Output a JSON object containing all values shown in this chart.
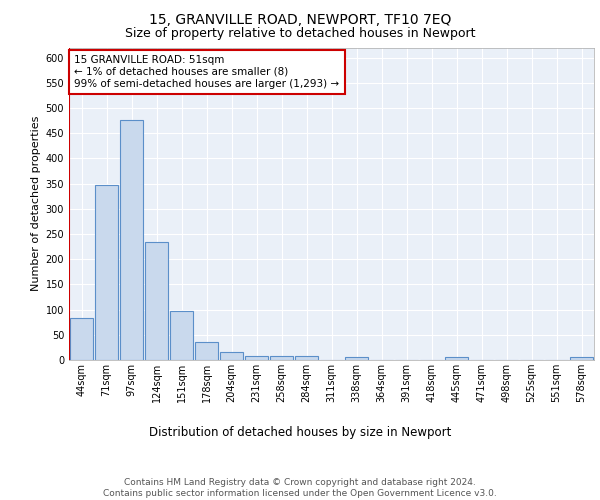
{
  "title1": "15, GRANVILLE ROAD, NEWPORT, TF10 7EQ",
  "title2": "Size of property relative to detached houses in Newport",
  "xlabel": "Distribution of detached houses by size in Newport",
  "ylabel": "Number of detached properties",
  "categories": [
    "44sqm",
    "71sqm",
    "97sqm",
    "124sqm",
    "151sqm",
    "178sqm",
    "204sqm",
    "231sqm",
    "258sqm",
    "284sqm",
    "311sqm",
    "338sqm",
    "364sqm",
    "391sqm",
    "418sqm",
    "445sqm",
    "471sqm",
    "498sqm",
    "525sqm",
    "551sqm",
    "578sqm"
  ],
  "values": [
    83,
    347,
    476,
    234,
    97,
    36,
    16,
    7,
    8,
    7,
    0,
    5,
    0,
    0,
    0,
    5,
    0,
    0,
    0,
    0,
    5
  ],
  "bar_color": "#c9d9ed",
  "bar_edge_color": "#5b8fc9",
  "bar_edge_width": 0.8,
  "ref_line_color": "#cc0000",
  "annotation_text": "15 GRANVILLE ROAD: 51sqm\n← 1% of detached houses are smaller (8)\n99% of semi-detached houses are larger (1,293) →",
  "annotation_box_color": "#ffffff",
  "annotation_box_edge": "#cc0000",
  "ylim": [
    0,
    620
  ],
  "yticks": [
    0,
    50,
    100,
    150,
    200,
    250,
    300,
    350,
    400,
    450,
    500,
    550,
    600
  ],
  "background_color": "#eaf0f8",
  "footer_text": "Contains HM Land Registry data © Crown copyright and database right 2024.\nContains public sector information licensed under the Open Government Licence v3.0.",
  "title1_fontsize": 10,
  "title2_fontsize": 9,
  "xlabel_fontsize": 8.5,
  "ylabel_fontsize": 8,
  "tick_fontsize": 7,
  "annotation_fontsize": 7.5,
  "footer_fontsize": 6.5
}
